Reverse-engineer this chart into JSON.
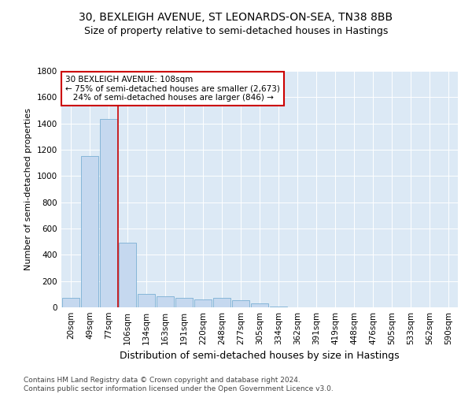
{
  "title": "30, BEXLEIGH AVENUE, ST LEONARDS-ON-SEA, TN38 8BB",
  "subtitle": "Size of property relative to semi-detached houses in Hastings",
  "xlabel": "Distribution of semi-detached houses by size in Hastings",
  "ylabel": "Number of semi-detached properties",
  "categories": [
    "20sqm",
    "49sqm",
    "77sqm",
    "106sqm",
    "134sqm",
    "163sqm",
    "191sqm",
    "220sqm",
    "248sqm",
    "277sqm",
    "305sqm",
    "334sqm",
    "362sqm",
    "391sqm",
    "419sqm",
    "448sqm",
    "476sqm",
    "505sqm",
    "533sqm",
    "562sqm",
    "590sqm"
  ],
  "values": [
    75,
    1150,
    1435,
    490,
    105,
    85,
    75,
    60,
    70,
    55,
    30,
    5,
    2,
    0,
    0,
    0,
    0,
    0,
    0,
    0,
    0
  ],
  "bar_color": "#c5d8ef",
  "bar_edge_color": "#7bafd4",
  "highlight_line_color": "#cc0000",
  "annotation_text": "30 BEXLEIGH AVENUE: 108sqm\n← 75% of semi-detached houses are smaller (2,673)\n   24% of semi-detached houses are larger (846) →",
  "annotation_box_color": "#ffffff",
  "annotation_box_edge_color": "#cc0000",
  "ylim": [
    0,
    1800
  ],
  "yticks": [
    0,
    200,
    400,
    600,
    800,
    1000,
    1200,
    1400,
    1600,
    1800
  ],
  "background_color": "#dce9f5",
  "grid_color": "#ffffff",
  "footer_text": "Contains HM Land Registry data © Crown copyright and database right 2024.\nContains public sector information licensed under the Open Government Licence v3.0.",
  "title_fontsize": 10,
  "subtitle_fontsize": 9,
  "ylabel_fontsize": 8,
  "xlabel_fontsize": 9,
  "tick_fontsize": 7.5,
  "footer_fontsize": 6.5
}
